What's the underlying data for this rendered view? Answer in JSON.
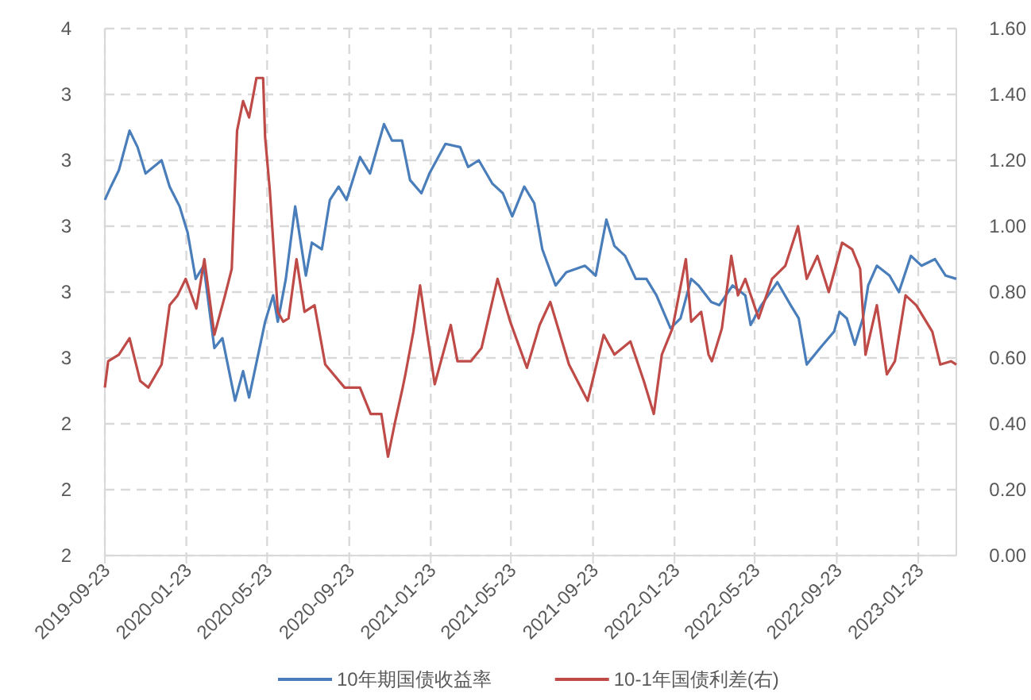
{
  "chart_data": {
    "type": "line",
    "xlim": [
      "2019-09-23",
      "2023-03-21"
    ],
    "xticks": [
      "2019-09-23",
      "2020-01-23",
      "2020-05-23",
      "2020-09-23",
      "2021-01-23",
      "2021-05-23",
      "2021-09-23",
      "2022-01-23",
      "2022-05-23",
      "2022-09-23",
      "2023-01-23"
    ],
    "ylim": [
      2.0,
      3.6
    ],
    "yticks": [
      {
        "value": 2.0,
        "label": "2"
      },
      {
        "value": 2.2,
        "label": "2"
      },
      {
        "value": 2.4,
        "label": "2"
      },
      {
        "value": 2.6,
        "label": "3"
      },
      {
        "value": 2.8,
        "label": "3"
      },
      {
        "value": 3.0,
        "label": "3"
      },
      {
        "value": 3.2,
        "label": "3"
      },
      {
        "value": 3.4,
        "label": "3"
      },
      {
        "value": 3.6,
        "label": "4"
      }
    ],
    "y2lim": [
      0,
      1.6
    ],
    "y2ticks": [
      {
        "value": 0,
        "label": "0.00"
      },
      {
        "value": 0.2,
        "label": "0.20"
      },
      {
        "value": 0.4,
        "label": "0.40"
      },
      {
        "value": 0.6,
        "label": "0.60"
      },
      {
        "value": 0.8,
        "label": "0.80"
      },
      {
        "value": 1.0,
        "label": "1.00"
      },
      {
        "value": 1.2,
        "label": "1.20"
      },
      {
        "value": 1.4,
        "label": "1.40"
      },
      {
        "value": 1.6,
        "label": "1.60"
      }
    ],
    "grid": true,
    "legend": "bottom",
    "series": [
      {
        "name": "10年期国债收益率",
        "color": "#4a7ebb",
        "x": [
          "2019-09-23",
          "2019-10-02",
          "2019-10-14",
          "2019-10-30",
          "2019-11-11",
          "2019-11-23",
          "2019-12-17",
          "2019-12-29",
          "2020-01-13",
          "2020-01-25",
          "2020-02-06",
          "2020-02-18",
          "2020-03-05",
          "2020-03-17",
          "2020-04-05",
          "2020-04-17",
          "2020-04-26",
          "2020-05-20",
          "2020-06-01",
          "2020-06-08",
          "2020-06-20",
          "2020-07-04",
          "2020-07-20",
          "2020-07-29",
          "2020-08-13",
          "2020-08-25",
          "2020-09-07",
          "2020-09-19",
          "2020-10-09",
          "2020-10-24",
          "2020-11-14",
          "2020-11-26",
          "2020-12-11",
          "2020-12-23",
          "2021-01-09",
          "2021-01-21",
          "2021-02-14",
          "2021-03-08",
          "2021-03-20",
          "2021-04-05",
          "2021-04-25",
          "2021-05-11",
          "2021-05-25",
          "2021-06-12",
          "2021-06-27",
          "2021-07-09",
          "2021-07-29",
          "2021-08-14",
          "2021-09-11",
          "2021-09-27",
          "2021-10-13",
          "2021-10-25",
          "2021-11-10",
          "2021-11-26",
          "2021-12-12",
          "2021-12-27",
          "2022-01-17",
          "2022-02-01",
          "2022-02-17",
          "2022-02-28",
          "2022-03-19",
          "2022-03-31",
          "2022-04-20",
          "2022-05-09",
          "2022-05-17",
          "2022-06-02",
          "2022-06-26",
          "2022-07-16",
          "2022-07-28",
          "2022-08-09",
          "2022-08-29",
          "2022-09-19",
          "2022-09-27",
          "2022-10-08",
          "2022-10-20",
          "2022-11-01",
          "2022-11-09",
          "2022-11-22",
          "2022-12-11",
          "2022-12-25",
          "2023-01-12",
          "2023-01-28",
          "2023-02-17",
          "2023-03-05",
          "2023-03-21"
        ],
        "values": [
          3.08,
          3.12,
          3.17,
          3.29,
          3.24,
          3.16,
          3.2,
          3.12,
          3.06,
          2.98,
          2.84,
          2.88,
          2.63,
          2.66,
          2.47,
          2.56,
          2.48,
          2.71,
          2.79,
          2.71,
          2.84,
          3.06,
          2.85,
          2.95,
          2.93,
          3.08,
          3.12,
          3.08,
          3.21,
          3.16,
          3.31,
          3.26,
          3.26,
          3.14,
          3.1,
          3.16,
          3.25,
          3.24,
          3.18,
          3.2,
          3.13,
          3.1,
          3.03,
          3.12,
          3.07,
          2.93,
          2.82,
          2.86,
          2.88,
          2.85,
          3.02,
          2.94,
          2.91,
          2.84,
          2.84,
          2.79,
          2.69,
          2.72,
          2.84,
          2.82,
          2.77,
          2.76,
          2.82,
          2.79,
          2.7,
          2.76,
          2.83,
          2.76,
          2.72,
          2.58,
          2.63,
          2.68,
          2.74,
          2.72,
          2.64,
          2.72,
          2.82,
          2.88,
          2.85,
          2.8,
          2.91,
          2.88,
          2.9,
          2.85,
          2.84
        ]
      },
      {
        "name": "10-1年国债利差(右)",
        "color": "#be4b48",
        "axis": "y2",
        "x": [
          "2019-09-23",
          "2019-09-28",
          "2019-10-14",
          "2019-10-30",
          "2019-11-15",
          "2019-11-27",
          "2019-12-17",
          "2019-12-29",
          "2020-01-10",
          "2020-01-22",
          "2020-02-07",
          "2020-02-19",
          "2020-03-05",
          "2020-03-21",
          "2020-03-31",
          "2020-04-08",
          "2020-04-17",
          "2020-04-26",
          "2020-05-07",
          "2020-05-17",
          "2020-05-20",
          "2020-05-27",
          "2020-06-08",
          "2020-06-16",
          "2020-06-24",
          "2020-07-06",
          "2020-07-18",
          "2020-08-02",
          "2020-08-18",
          "2020-09-16",
          "2020-10-09",
          "2020-10-25",
          "2020-11-10",
          "2020-11-20",
          "2020-11-30",
          "2020-12-12",
          "2020-12-16",
          "2020-12-28",
          "2021-01-07",
          "2021-01-17",
          "2021-01-29",
          "2021-02-22",
          "2021-03-04",
          "2021-03-24",
          "2021-04-09",
          "2021-05-03",
          "2021-05-22",
          "2021-06-16",
          "2021-07-05",
          "2021-07-21",
          "2021-08-18",
          "2021-09-15",
          "2021-10-09",
          "2021-10-25",
          "2021-11-18",
          "2021-12-08",
          "2021-12-23",
          "2022-01-04",
          "2022-01-20",
          "2022-02-09",
          "2022-02-17",
          "2022-03-04",
          "2022-03-15",
          "2022-03-20",
          "2022-04-04",
          "2022-04-18",
          "2022-04-28",
          "2022-05-09",
          "2022-05-29",
          "2022-06-18",
          "2022-07-08",
          "2022-07-27",
          "2022-08-09",
          "2022-08-25",
          "2022-09-11",
          "2022-10-01",
          "2022-10-16",
          "2022-10-28",
          "2022-11-05",
          "2022-11-22",
          "2022-12-07",
          "2022-12-19",
          "2023-01-04",
          "2023-01-20",
          "2023-02-13",
          "2023-02-25",
          "2023-03-13",
          "2023-03-21"
        ],
        "values": [
          0.51,
          0.59,
          0.61,
          0.66,
          0.53,
          0.51,
          0.58,
          0.76,
          0.79,
          0.84,
          0.75,
          0.9,
          0.67,
          0.79,
          0.87,
          1.29,
          1.38,
          1.33,
          1.45,
          1.45,
          1.27,
          1.11,
          0.74,
          0.71,
          0.72,
          0.9,
          0.74,
          0.76,
          0.58,
          0.51,
          0.51,
          0.43,
          0.43,
          0.3,
          0.4,
          0.51,
          0.55,
          0.68,
          0.82,
          0.68,
          0.52,
          0.7,
          0.59,
          0.59,
          0.63,
          0.84,
          0.71,
          0.57,
          0.7,
          0.77,
          0.58,
          0.47,
          0.67,
          0.61,
          0.65,
          0.53,
          0.43,
          0.61,
          0.69,
          0.9,
          0.71,
          0.74,
          0.61,
          0.59,
          0.69,
          0.91,
          0.79,
          0.84,
          0.72,
          0.84,
          0.88,
          1.0,
          0.84,
          0.91,
          0.8,
          0.95,
          0.93,
          0.87,
          0.61,
          0.76,
          0.55,
          0.59,
          0.79,
          0.76,
          0.68,
          0.58,
          0.59,
          0.58
        ]
      }
    ]
  }
}
